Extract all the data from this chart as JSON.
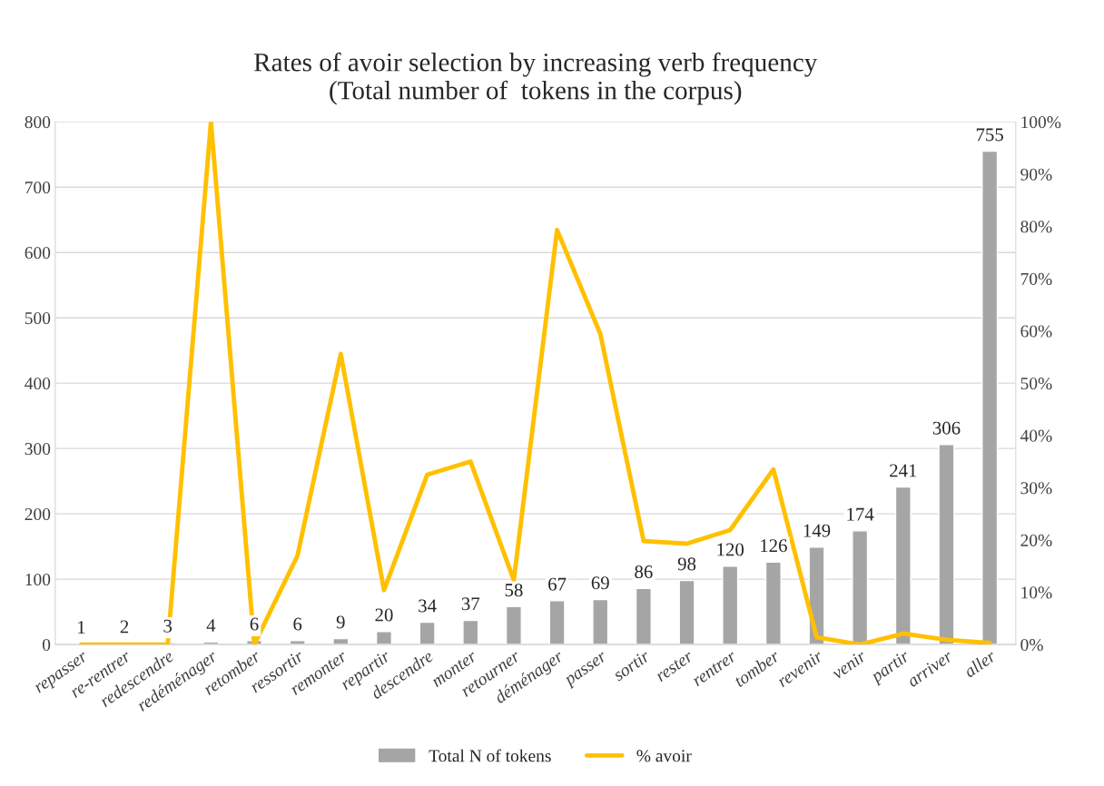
{
  "chart_data": {
    "type": "bar",
    "title": "Rates of avoir selection by increasing verb frequency\n(Total number of  tokens in the corpus)",
    "categories": [
      "repasser",
      "re-rentrer",
      "redescendre",
      "redéménager",
      "retomber",
      "ressortir",
      "remonter",
      "repartir",
      "descendre",
      "monter",
      "retourner",
      "déménager",
      "passer",
      "sortir",
      "rester",
      "rentrer",
      "tomber",
      "revenir",
      "venir",
      "partir",
      "arriver",
      "aller"
    ],
    "series": [
      {
        "name": "Total N of tokens",
        "color": "#a5a5a5",
        "values": [
          1,
          2,
          3,
          4,
          6,
          6,
          9,
          20,
          34,
          37,
          58,
          67,
          69,
          86,
          98,
          120,
          126,
          149,
          174,
          241,
          306,
          755
        ],
        "value_labels": [
          "1",
          "2",
          "3",
          "4",
          "6",
          "6",
          "9",
          "20",
          "34",
          "37",
          "58",
          "67",
          "69",
          "86",
          "98",
          "120",
          "126",
          "149",
          "174",
          "241",
          "306",
          "755"
        ]
      },
      {
        "name": "% avoir",
        "type": "line",
        "axis": "y2",
        "color": "#ffc000",
        "values": [
          0,
          0,
          0,
          100,
          0,
          17,
          55.6,
          10.4,
          32.5,
          35,
          12.3,
          79.3,
          59.4,
          19.8,
          19.3,
          21.9,
          33.5,
          1.4,
          0,
          2.1,
          0.9,
          0.3
        ]
      }
    ],
    "ylim": [
      0,
      800
    ],
    "yticks": [
      0,
      100,
      200,
      300,
      400,
      500,
      600,
      700,
      800
    ],
    "y2lim": [
      0,
      100
    ],
    "y2ticks": [
      {
        "value": 0,
        "label": "0%"
      },
      {
        "value": 10,
        "label": "10%"
      },
      {
        "value": 20,
        "label": "20%"
      },
      {
        "value": 30,
        "label": "30%"
      },
      {
        "value": 40,
        "label": "40%"
      },
      {
        "value": 50,
        "label": "50%"
      },
      {
        "value": 60,
        "label": "60%"
      },
      {
        "value": 70,
        "label": "70%"
      },
      {
        "value": 80,
        "label": "80%"
      },
      {
        "value": 90,
        "label": "90%"
      },
      {
        "value": 100,
        "label": "100%"
      }
    ],
    "grid": "y",
    "legend": "bottom",
    "marker": "none",
    "line_style": "solid"
  }
}
